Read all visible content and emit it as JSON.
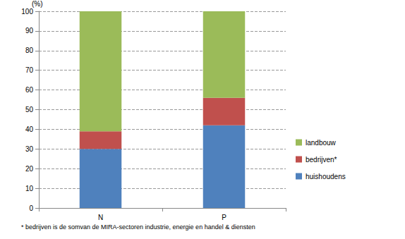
{
  "chart_data": {
    "type": "bar",
    "ylabel": "(%)",
    "categories": [
      "N",
      "P"
    ],
    "series": [
      {
        "name": "huishoudens",
        "color": "#4f81bd",
        "values": [
          30,
          42
        ]
      },
      {
        "name": "bedrijven*",
        "color": "#c0504d",
        "values": [
          9,
          14
        ]
      },
      {
        "name": "landbouw",
        "color": "#9bbb59",
        "values": [
          61,
          44
        ]
      }
    ],
    "stacked": true,
    "ylim": [
      0,
      100
    ],
    "yticks": [
      0,
      10,
      20,
      30,
      40,
      50,
      60,
      70,
      80,
      90,
      100
    ],
    "grid": true,
    "legend": "right",
    "annotations": [
      "* bedrijven is de somvan de MIRA-sectoren industrie, energie en handel & diensten"
    ]
  }
}
